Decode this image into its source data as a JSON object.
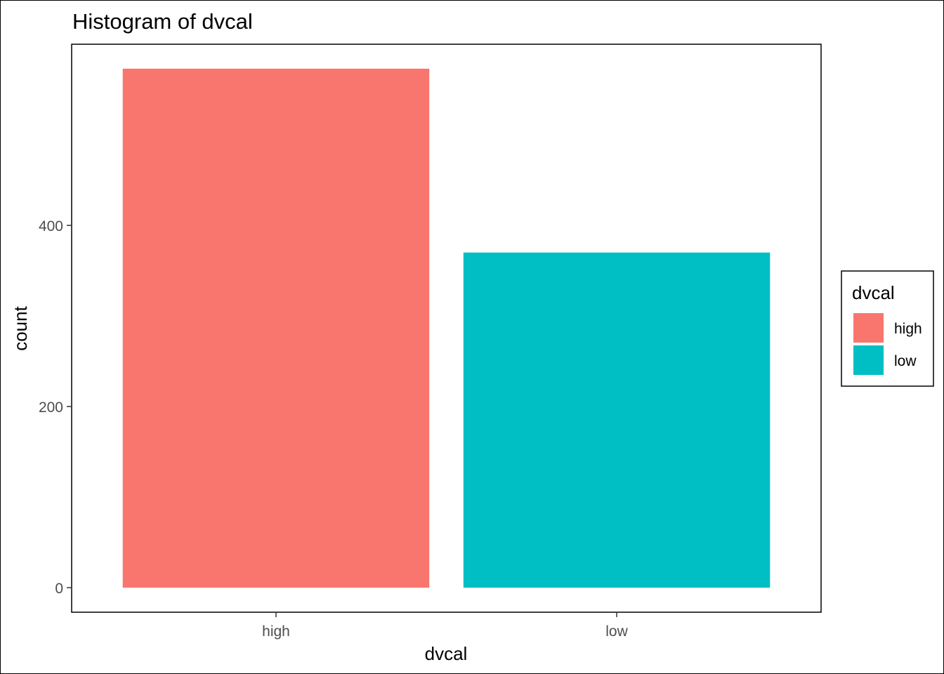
{
  "chart_data": {
    "type": "bar",
    "title": "Histogram of dvcal",
    "xlabel": "dvcal",
    "ylabel": "count",
    "categories": [
      "high",
      "low"
    ],
    "values": [
      573,
      370
    ],
    "colors": [
      "#F8766D",
      "#00BFC4"
    ],
    "ylim": [
      0,
      600
    ],
    "yticks": [
      0,
      200,
      400
    ],
    "ytick_labels": [
      "0",
      "200",
      "400"
    ],
    "grid": false,
    "legend": {
      "title": "dvcal",
      "placement": "right",
      "entries": [
        {
          "label": "high",
          "color": "#F8766D"
        },
        {
          "label": "low",
          "color": "#00BFC4"
        }
      ]
    }
  }
}
